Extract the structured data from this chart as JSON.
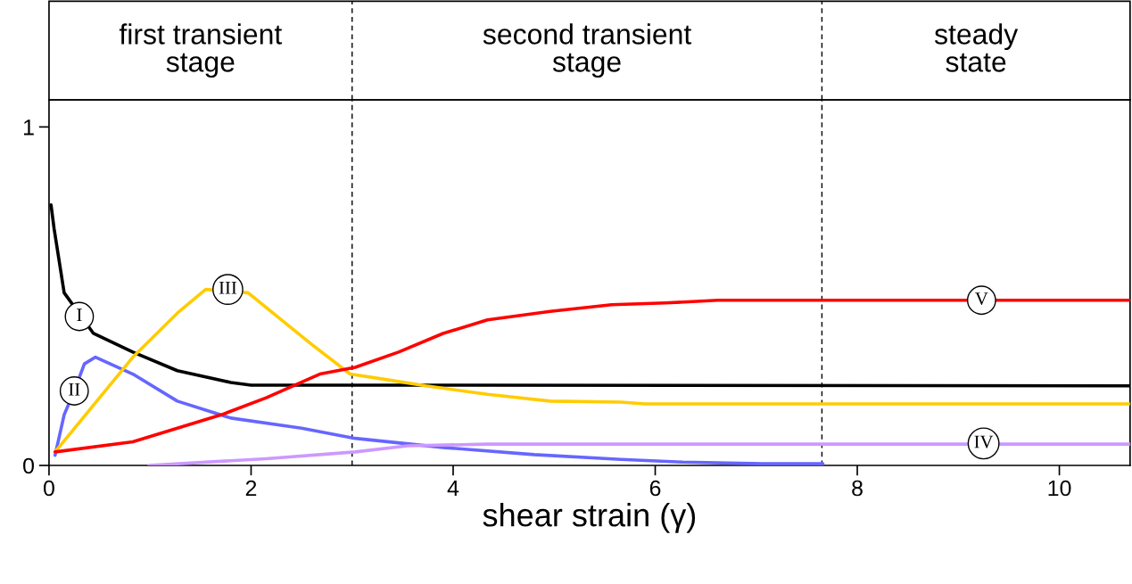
{
  "chart_data": {
    "type": "line",
    "xlabel": "shear strain (γ)",
    "xlim": [
      0,
      10.7
    ],
    "xticks": [
      0,
      2,
      4,
      6,
      8,
      10
    ],
    "ylim": [
      0,
      1.08
    ],
    "yticks": [
      0,
      1
    ],
    "grid": false,
    "legend": false,
    "line_style": "solid",
    "marker": "none",
    "series": [
      {
        "color": "#000000",
        "x": [
          0.02,
          0.05,
          0.15,
          0.44,
          0.83,
          1.27,
          1.8,
          2.0,
          4.1,
          10.7
        ],
        "values": [
          0.77,
          0.7,
          0.51,
          0.39,
          0.335,
          0.28,
          0.245,
          0.237,
          0.237,
          0.235
        ]
      },
      {
        "color": "#6666ff",
        "x": [
          0.06,
          0.15,
          0.25,
          0.35,
          0.46,
          0.83,
          1.27,
          1.8,
          2.5,
          3.03,
          3.9,
          4.8,
          5.66,
          6.27,
          7.06,
          7.66
        ],
        "values": [
          0.03,
          0.15,
          0.22,
          0.3,
          0.32,
          0.27,
          0.19,
          0.14,
          0.11,
          0.08,
          0.053,
          0.032,
          0.018,
          0.01,
          0.005,
          0.005
        ]
      },
      {
        "color": "#ffcc00",
        "x": [
          0.06,
          0.83,
          1.27,
          1.55,
          1.97,
          2.59,
          2.98,
          3.29,
          3.73,
          4.34,
          4.96,
          5.66,
          5.9,
          10.7
        ],
        "values": [
          0.04,
          0.32,
          0.45,
          0.52,
          0.51,
          0.36,
          0.27,
          0.256,
          0.235,
          0.21,
          0.19,
          0.187,
          0.182,
          0.182
        ]
      },
      {
        "color": "#cc99ff",
        "x": [
          0.99,
          2.15,
          3.03,
          3.55,
          4.34,
          10.7
        ],
        "values": [
          0.0,
          0.02,
          0.04,
          0.058,
          0.063,
          0.063
        ]
      },
      {
        "color": "#ff0000",
        "x": [
          0.06,
          0.83,
          1.71,
          2.15,
          2.68,
          3.03,
          3.46,
          3.9,
          4.34,
          4.96,
          5.57,
          6.1,
          6.62,
          10.7
        ],
        "values": [
          0.04,
          0.07,
          0.15,
          0.2,
          0.27,
          0.29,
          0.335,
          0.39,
          0.43,
          0.455,
          0.475,
          0.48,
          0.488,
          0.488
        ]
      }
    ],
    "ref_lines": [
      {
        "axis": "x",
        "value": 3.0,
        "line_style": "dashed",
        "color": "#000000"
      },
      {
        "axis": "x",
        "value": 7.65,
        "line_style": "dashed",
        "color": "#000000"
      }
    ],
    "annotations": [
      "first transient\nstage",
      "second transient\nstage",
      "steady\nstate",
      {
        "text": "I",
        "x": 0.3,
        "y": 0.44
      },
      {
        "text": "II",
        "x": 0.25,
        "y": 0.22
      },
      {
        "text": "III",
        "x": 1.77,
        "y": 0.52
      },
      {
        "text": "IV",
        "x": 9.25,
        "y": 0.065
      },
      {
        "text": "V",
        "x": 9.23,
        "y": 0.488
      }
    ]
  }
}
